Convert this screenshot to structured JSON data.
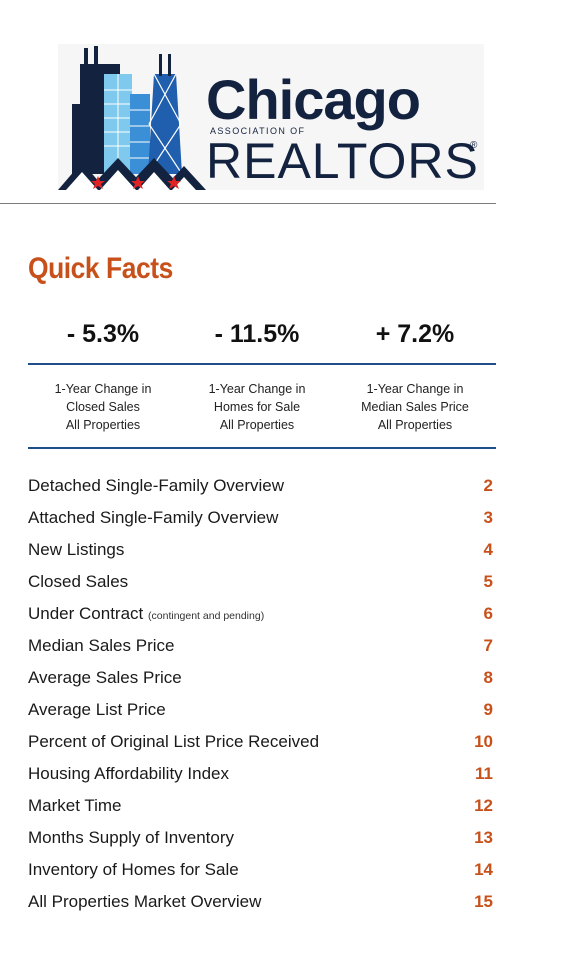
{
  "logo": {
    "name": "Chicago",
    "sub": "ASSOCIATION OF",
    "realtors": "REALTORS",
    "reg": "®",
    "colors": {
      "navy": "#13223f",
      "light_blue": "#7fc9ee",
      "sky_blue": "#3b8fd6",
      "red": "#e02424"
    }
  },
  "section_title": "Quick Facts",
  "stats": [
    {
      "value": "- 5.3%",
      "label_lines": [
        "1-Year Change in",
        "Closed Sales",
        "All Properties"
      ]
    },
    {
      "value": "- 11.5%",
      "label_lines": [
        "1-Year Change in",
        "Homes for Sale",
        "All Properties"
      ]
    },
    {
      "value": "+ 7.2%",
      "label_lines": [
        "1-Year Change in",
        "Median Sales Price",
        "All Properties"
      ]
    }
  ],
  "toc": [
    {
      "label": "Detached Single-Family Overview",
      "note": "",
      "page": "2"
    },
    {
      "label": "Attached Single-Family Overview",
      "note": "",
      "page": "3"
    },
    {
      "label": "New Listings",
      "note": "",
      "page": "4"
    },
    {
      "label": "Closed Sales",
      "note": "",
      "page": "5"
    },
    {
      "label": "Under Contract",
      "note": "(contingent and pending)",
      "page": "6"
    },
    {
      "label": "Median Sales Price",
      "note": "",
      "page": "7"
    },
    {
      "label": "Average Sales Price",
      "note": "",
      "page": "8"
    },
    {
      "label": "Average List Price",
      "note": "",
      "page": "9"
    },
    {
      "label": "Percent of Original List Price Received",
      "note": "",
      "page": "10"
    },
    {
      "label": "Housing Affordability Index",
      "note": "",
      "page": "11"
    },
    {
      "label": "Market Time",
      "note": "",
      "page": "12"
    },
    {
      "label": "Months Supply of Inventory",
      "note": "",
      "page": "13"
    },
    {
      "label": "Inventory of Homes for Sale",
      "note": "",
      "page": "14"
    },
    {
      "label": "All Properties Market Overview",
      "note": "",
      "page": "15"
    }
  ],
  "colors": {
    "accent": "#c8511b",
    "rule_blue": "#1f4e8a"
  }
}
